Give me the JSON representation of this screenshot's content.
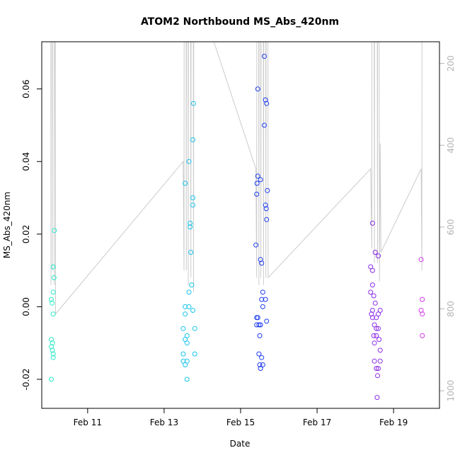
{
  "chart_data": {
    "type": "scatter",
    "title": "ATOM2 Northbound MS_Abs_420nm",
    "xlabel": "Date",
    "ylabel": "MS_Abs_420nm",
    "x_unit": "days in February",
    "xlim": [
      9.8,
      20.2
    ],
    "ylim": [
      -0.028,
      0.073
    ],
    "x_ticks": [
      {
        "value": 11,
        "label": "Feb 11"
      },
      {
        "value": 13,
        "label": "Feb 13"
      },
      {
        "value": 15,
        "label": "Feb 15"
      },
      {
        "value": 17,
        "label": "Feb 17"
      },
      {
        "value": 19,
        "label": "Feb 19"
      }
    ],
    "y_ticks": [
      {
        "value": -0.02,
        "label": "-0.02"
      },
      {
        "value": 0.0,
        "label": "0.00"
      },
      {
        "value": 0.02,
        "label": "0.02"
      },
      {
        "value": 0.04,
        "label": "0.04"
      },
      {
        "value": 0.06,
        "label": "0.06"
      }
    ],
    "secondary_axis": {
      "position": "right",
      "reversed": true,
      "lim": [
        1043,
        147
      ],
      "color": "#b3b3b3",
      "ticks": [
        {
          "value": 200,
          "label": "200"
        },
        {
          "value": 400,
          "label": "400"
        },
        {
          "value": 600,
          "label": "600"
        },
        {
          "value": 800,
          "label": "800"
        },
        {
          "value": 1000,
          "label": "1000"
        }
      ]
    },
    "grid": false,
    "legend": "none",
    "series": [
      {
        "color": "#2ae8c8",
        "points": [
          [
            10.05,
            -0.02
          ],
          [
            10.05,
            -0.009
          ],
          [
            10.08,
            -0.01
          ],
          [
            10.05,
            -0.011
          ],
          [
            10.08,
            -0.012
          ],
          [
            10.1,
            -0.013
          ],
          [
            10.1,
            -0.014
          ],
          [
            10.05,
            0.002
          ],
          [
            10.07,
            0.001
          ],
          [
            10.1,
            -0.002
          ],
          [
            10.1,
            0.004
          ],
          [
            10.12,
            0.008
          ],
          [
            10.1,
            0.011
          ],
          [
            10.13,
            0.021
          ]
        ]
      },
      {
        "color": "#18c4ea",
        "points": [
          [
            13.5,
            -0.006
          ],
          [
            13.55,
            -0.009
          ],
          [
            13.6,
            -0.008
          ],
          [
            13.5,
            -0.013
          ],
          [
            13.6,
            -0.01
          ],
          [
            13.5,
            -0.015
          ],
          [
            13.55,
            -0.016
          ],
          [
            13.6,
            -0.015
          ],
          [
            13.6,
            -0.02
          ],
          [
            13.55,
            0.0
          ],
          [
            13.55,
            -0.002
          ],
          [
            13.65,
            0.0
          ],
          [
            13.75,
            -0.001
          ],
          [
            13.8,
            -0.006
          ],
          [
            13.8,
            -0.013
          ],
          [
            13.65,
            0.004
          ],
          [
            13.72,
            0.006
          ],
          [
            13.7,
            0.015
          ],
          [
            13.68,
            0.022
          ],
          [
            13.68,
            0.023
          ],
          [
            13.75,
            0.028
          ],
          [
            13.75,
            0.03
          ],
          [
            13.55,
            0.034
          ],
          [
            13.65,
            0.04
          ],
          [
            13.75,
            0.046
          ],
          [
            13.77,
            0.056
          ]
        ]
      },
      {
        "color": "#1f3df0",
        "points": [
          [
            15.4,
            0.017
          ],
          [
            15.42,
            0.031
          ],
          [
            15.43,
            0.034
          ],
          [
            15.45,
            0.036
          ],
          [
            15.52,
            0.035
          ],
          [
            15.45,
            0.06
          ],
          [
            15.62,
            0.069
          ],
          [
            15.65,
            0.057
          ],
          [
            15.68,
            0.056
          ],
          [
            15.62,
            0.05
          ],
          [
            15.7,
            0.032
          ],
          [
            15.65,
            0.028
          ],
          [
            15.67,
            0.027
          ],
          [
            15.68,
            0.024
          ],
          [
            15.52,
            0.013
          ],
          [
            15.55,
            0.012
          ],
          [
            15.58,
            0.004
          ],
          [
            15.55,
            0.002
          ],
          [
            15.65,
            0.002
          ],
          [
            15.58,
            0.0
          ],
          [
            15.42,
            -0.003
          ],
          [
            15.45,
            -0.003
          ],
          [
            15.42,
            -0.005
          ],
          [
            15.48,
            -0.005
          ],
          [
            15.52,
            -0.005
          ],
          [
            15.68,
            -0.004
          ],
          [
            15.5,
            -0.008
          ],
          [
            15.48,
            -0.013
          ],
          [
            15.55,
            -0.014
          ],
          [
            15.5,
            -0.016
          ],
          [
            15.58,
            -0.016
          ],
          [
            15.52,
            -0.017
          ]
        ]
      },
      {
        "color": "#8b2ce8",
        "points": [
          [
            18.45,
            0.023
          ],
          [
            18.52,
            0.015
          ],
          [
            18.6,
            0.014
          ],
          [
            18.4,
            0.011
          ],
          [
            18.45,
            0.01
          ],
          [
            18.45,
            0.006
          ],
          [
            18.4,
            0.004
          ],
          [
            18.48,
            0.003
          ],
          [
            18.52,
            0.001
          ],
          [
            18.45,
            -0.001
          ],
          [
            18.42,
            -0.002
          ],
          [
            18.65,
            -0.001
          ],
          [
            18.6,
            -0.002
          ],
          [
            18.45,
            -0.003
          ],
          [
            18.55,
            -0.003
          ],
          [
            18.5,
            -0.005
          ],
          [
            18.55,
            -0.006
          ],
          [
            18.6,
            -0.006
          ],
          [
            18.48,
            -0.008
          ],
          [
            18.55,
            -0.008
          ],
          [
            18.62,
            -0.009
          ],
          [
            18.5,
            -0.01
          ],
          [
            18.65,
            -0.012
          ],
          [
            18.5,
            -0.015
          ],
          [
            18.65,
            -0.015
          ],
          [
            18.55,
            -0.017
          ],
          [
            18.6,
            -0.017
          ],
          [
            18.58,
            -0.019
          ],
          [
            18.57,
            -0.025
          ]
        ]
      },
      {
        "color": "#d13ae6",
        "points": [
          [
            19.72,
            0.013
          ],
          [
            19.75,
            0.002
          ],
          [
            19.72,
            -0.001
          ],
          [
            19.75,
            -0.002
          ],
          [
            19.75,
            -0.008
          ]
        ]
      }
    ],
    "depth_line": {
      "color": "#cccccc",
      "note": "secondary-axis profile trace",
      "points": [
        [
          10.02,
          0.4
        ],
        [
          10.04,
          0.006
        ],
        [
          10.05,
          0.4
        ],
        [
          10.08,
          0.01
        ],
        [
          10.1,
          0.4
        ],
        [
          10.13,
          0.006
        ],
        [
          10.14,
          0.4
        ],
        [
          10.16,
          -0.002
        ],
        [
          13.5,
          0.04
        ],
        [
          13.52,
          0.01
        ],
        [
          13.54,
          0.4
        ],
        [
          13.58,
          0.01
        ],
        [
          13.6,
          0.4
        ],
        [
          13.63,
          0.006
        ],
        [
          13.66,
          0.4
        ],
        [
          13.7,
          0.008
        ],
        [
          13.73,
          0.4
        ],
        [
          13.77,
          0.004
        ],
        [
          13.8,
          0.4
        ],
        [
          14.3,
          0.073
        ],
        [
          15.4,
          0.038
        ],
        [
          15.42,
          0.008
        ],
        [
          15.44,
          0.4
        ],
        [
          15.48,
          0.006
        ],
        [
          15.5,
          0.4
        ],
        [
          15.53,
          0.008
        ],
        [
          15.56,
          0.4
        ],
        [
          15.6,
          0.006
        ],
        [
          15.63,
          0.4
        ],
        [
          15.66,
          0.008
        ],
        [
          15.69,
          0.4
        ],
        [
          15.72,
          0.008
        ],
        [
          18.4,
          0.038
        ],
        [
          18.43,
          0.016
        ],
        [
          18.46,
          0.4
        ],
        [
          18.5,
          0.012
        ],
        [
          18.53,
          0.4
        ],
        [
          18.58,
          0.012
        ],
        [
          18.6,
          0.4
        ],
        [
          18.63,
          0.007
        ],
        [
          18.65,
          0.045
        ],
        [
          18.67,
          0.015
        ],
        [
          19.72,
          0.038
        ],
        [
          19.74,
          0.01
        ],
        [
          19.76,
          0.4
        ]
      ]
    }
  }
}
